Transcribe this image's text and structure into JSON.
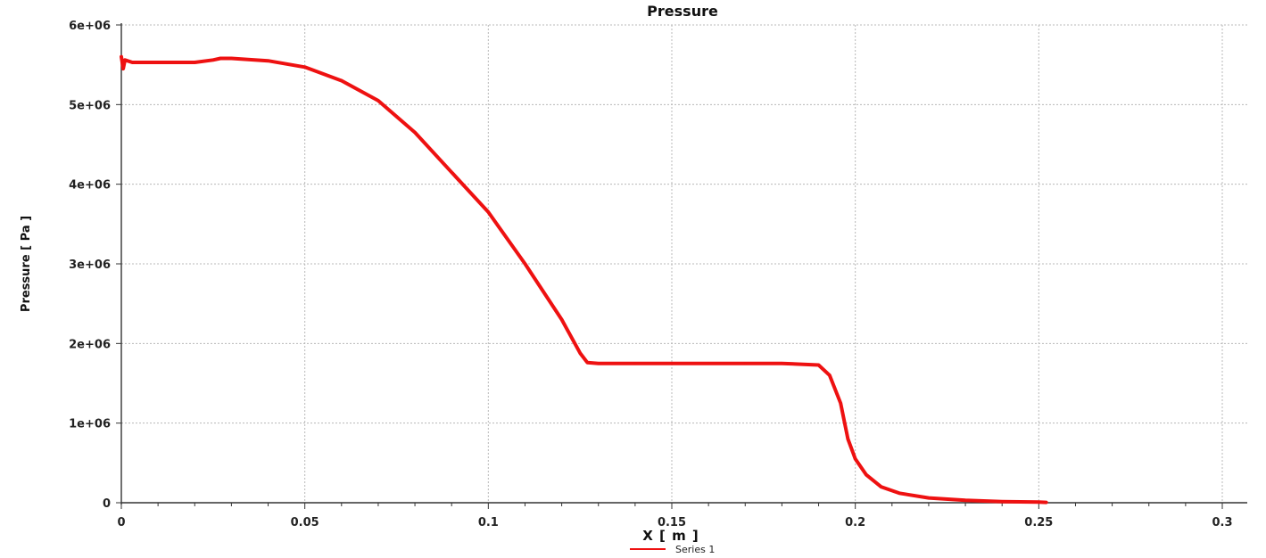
{
  "chart_data": {
    "type": "line",
    "title": "Pressure",
    "xlabel": "X [ m ]",
    "ylabel": "Pressure [ Pa ]",
    "xlim": [
      0,
      0.3
    ],
    "ylim": [
      0,
      6000000
    ],
    "x_ticks": [
      0,
      0.05,
      0.1,
      0.15,
      0.2,
      0.25,
      0.3
    ],
    "x_tick_labels": [
      "0",
      "0.05",
      "0.1",
      "0.15",
      "0.2",
      "0.25",
      "0.3"
    ],
    "y_ticks": [
      0,
      1000000,
      2000000,
      3000000,
      4000000,
      5000000,
      6000000
    ],
    "y_tick_labels": [
      "0",
      "1e+06",
      "2e+06",
      "3e+06",
      "4e+06",
      "5e+06",
      "6e+06"
    ],
    "grid": true,
    "legend_position": "bottom-center",
    "series": [
      {
        "name": "Series 1",
        "color": "#ee1111",
        "x": [
          0,
          0.0005,
          0.001,
          0.003,
          0.01,
          0.02,
          0.025,
          0.027,
          0.03,
          0.04,
          0.05,
          0.06,
          0.07,
          0.08,
          0.09,
          0.1,
          0.11,
          0.12,
          0.125,
          0.127,
          0.13,
          0.14,
          0.15,
          0.16,
          0.17,
          0.18,
          0.19,
          0.193,
          0.196,
          0.198,
          0.2,
          0.203,
          0.207,
          0.212,
          0.22,
          0.23,
          0.24,
          0.25,
          0.252
        ],
        "y": [
          5600000,
          5450000,
          5560000,
          5530000,
          5530000,
          5530000,
          5560000,
          5580000,
          5580000,
          5550000,
          5470000,
          5300000,
          5050000,
          4650000,
          4150000,
          3650000,
          3000000,
          2300000,
          1880000,
          1760000,
          1750000,
          1750000,
          1750000,
          1750000,
          1750000,
          1750000,
          1730000,
          1600000,
          1250000,
          800000,
          550000,
          350000,
          200000,
          120000,
          60000,
          30000,
          15000,
          8000,
          5000
        ]
      }
    ]
  }
}
